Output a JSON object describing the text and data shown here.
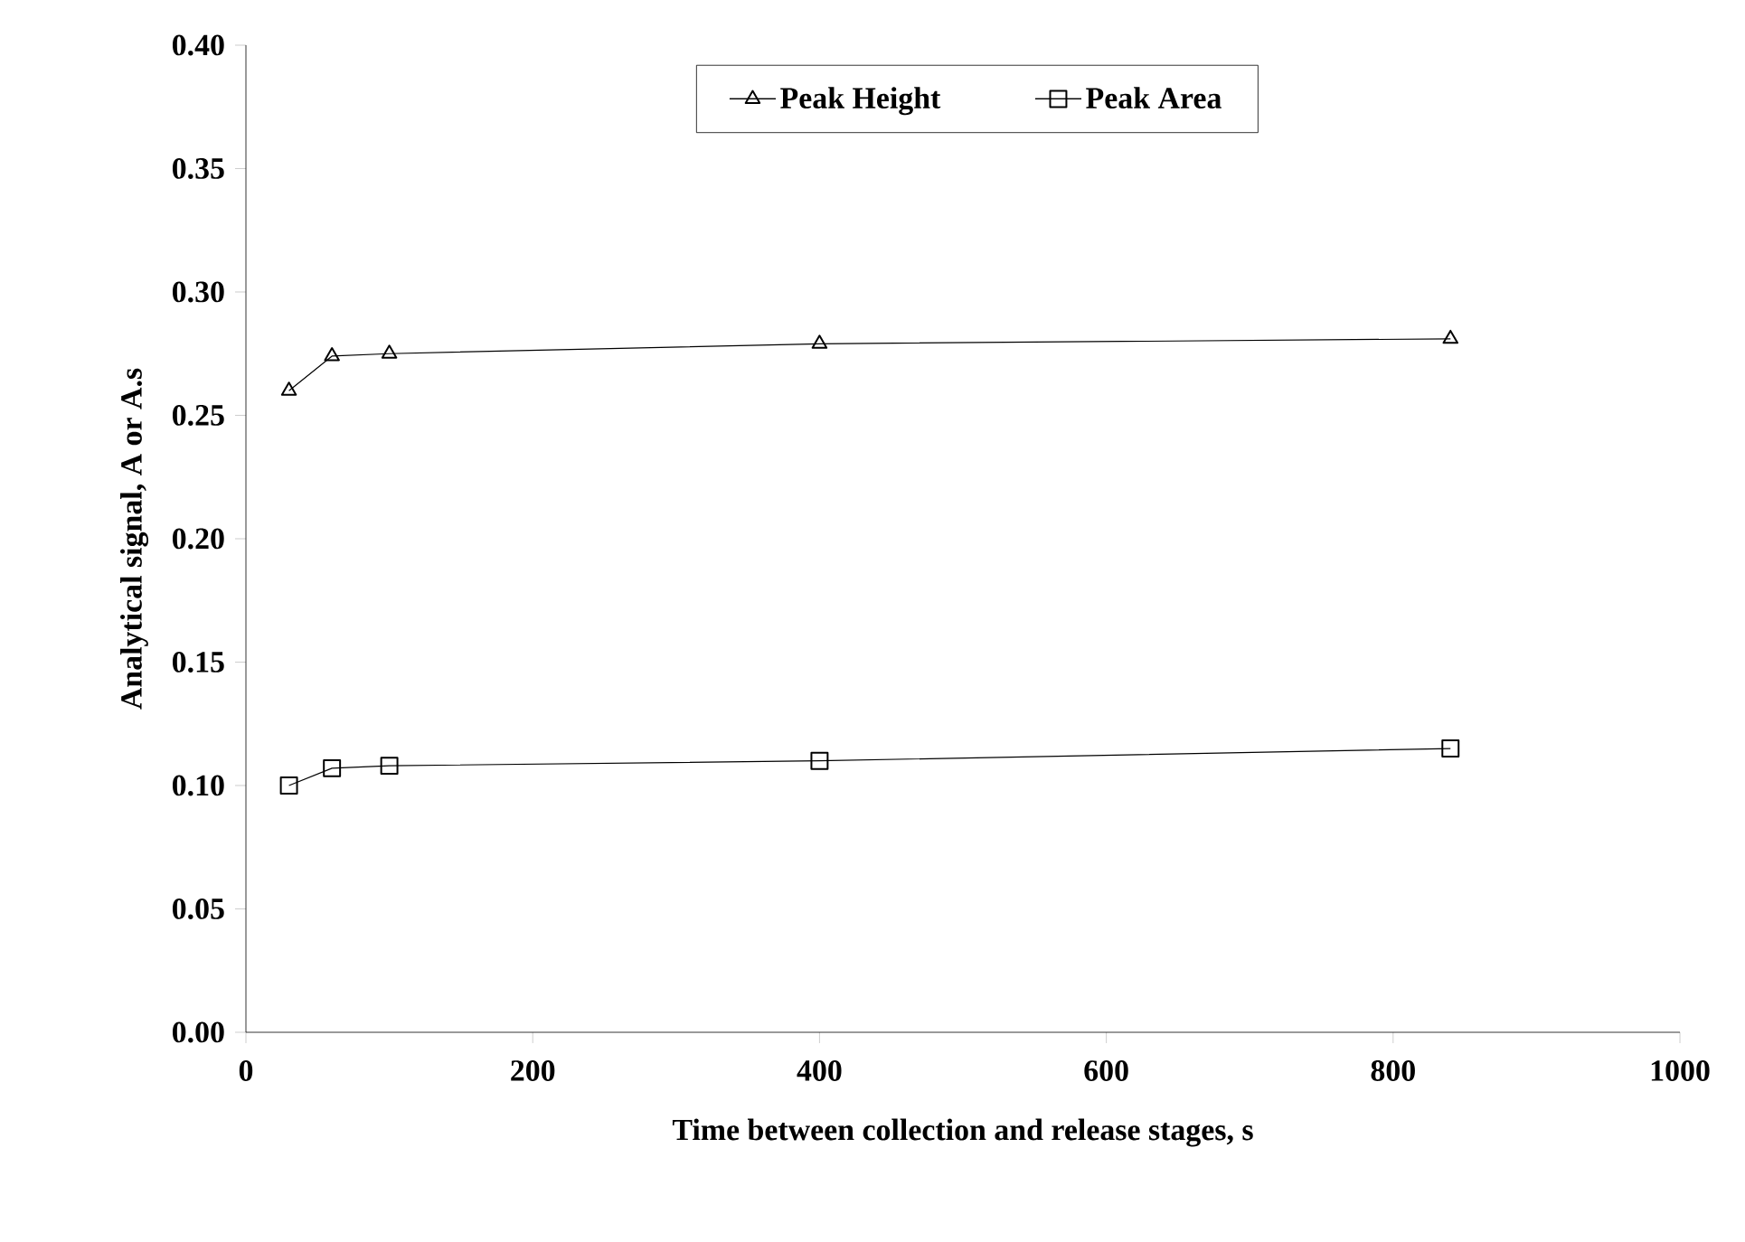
{
  "chart_data": {
    "type": "line",
    "xlabel": "Time between collection and release stages, s",
    "ylabel": "Analytical signal, A or A.s",
    "xlim": [
      0,
      1000
    ],
    "ylim": [
      0,
      0.4
    ],
    "xticks": [
      0,
      200,
      400,
      600,
      800,
      1000
    ],
    "yticks": [
      {
        "value": 0,
        "label": "0.00"
      },
      {
        "value": 0.05,
        "label": "0.05"
      },
      {
        "value": 0.1,
        "label": "0.10"
      },
      {
        "value": 0.15,
        "label": "0.15"
      },
      {
        "value": 0.2,
        "label": "0.20"
      },
      {
        "value": 0.25,
        "label": "0.25"
      },
      {
        "value": 0.3,
        "label": "0.30"
      },
      {
        "value": 0.35,
        "label": "0.35"
      },
      {
        "value": 0.4,
        "label": "0.40"
      }
    ],
    "grid": false,
    "legend": "top",
    "line_style": "solid",
    "series": [
      {
        "name": "Peak Height",
        "color": "#000000",
        "marker": "triangle",
        "x": [
          30,
          60,
          100,
          400,
          840
        ],
        "values": [
          0.26,
          0.274,
          0.275,
          0.279,
          0.281
        ]
      },
      {
        "name": "Peak Area",
        "color": "#000000",
        "marker": "square",
        "x": [
          30,
          60,
          100,
          400,
          840
        ],
        "values": [
          0.1,
          0.107,
          0.108,
          0.11,
          0.115
        ]
      }
    ]
  }
}
